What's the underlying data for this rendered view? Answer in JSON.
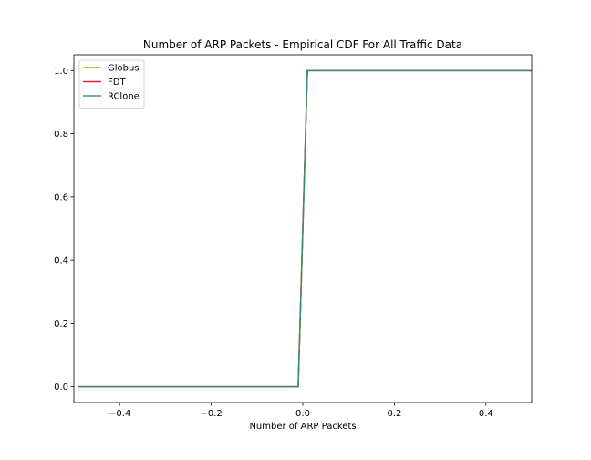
{
  "chart_data": {
    "type": "line",
    "title": "Number of ARP Packets - Empirical CDF For All Traffic Data",
    "xlabel": "Number of ARP Packets",
    "ylabel": "",
    "xlim": [
      -0.5,
      0.5
    ],
    "ylim": [
      -0.05,
      1.05
    ],
    "xticks": [
      -0.4,
      -0.2,
      0.0,
      0.2,
      0.4
    ],
    "xtick_labels": [
      "−0.4",
      "−0.2",
      "0.0",
      "0.2",
      "0.4"
    ],
    "yticks": [
      0.0,
      0.2,
      0.4,
      0.6,
      0.8,
      1.0
    ],
    "ytick_labels": [
      "0.0",
      "0.2",
      "0.4",
      "0.6",
      "0.8",
      "1.0"
    ],
    "grid": false,
    "legend_position": "top-left",
    "series": [
      {
        "name": "Globus",
        "color": "#d4a017",
        "x": [
          -0.49,
          -0.01,
          0.0,
          0.01,
          0.5
        ],
        "y": [
          0.0,
          0.0,
          0.5,
          1.0,
          1.0
        ]
      },
      {
        "name": "FDT",
        "color": "#d62728",
        "x": [
          -0.49,
          -0.01,
          0.0,
          0.01,
          0.5
        ],
        "y": [
          0.0,
          0.0,
          0.5,
          1.0,
          1.0
        ]
      },
      {
        "name": "RClone",
        "color": "#3a8f6a",
        "x": [
          -0.49,
          -0.01,
          0.0,
          0.01,
          0.5
        ],
        "y": [
          0.0,
          0.0,
          0.5,
          1.0,
          1.0
        ]
      }
    ]
  }
}
